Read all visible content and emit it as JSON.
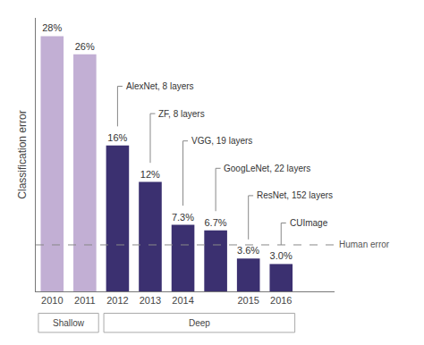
{
  "chart_data": {
    "type": "bar",
    "categories": [
      "2010",
      "2011",
      "2012",
      "2013",
      "2014",
      null,
      "2015",
      "2016"
    ],
    "values": [
      28,
      26,
      16,
      12,
      7.3,
      6.7,
      3.6,
      3.0
    ],
    "value_labels": [
      "28%",
      "26%",
      "16%",
      "12%",
      "7.3%",
      "6.7%",
      "3.6%",
      "3.0%"
    ],
    "data_labels": true,
    "colors": [
      "#c2afd4",
      "#c2afd4",
      "#3b3070",
      "#3b3070",
      "#3b3070",
      "#3b3070",
      "#3b3070",
      "#3b3070"
    ],
    "ylabel": "Classification error",
    "ylim": [
      0,
      30
    ],
    "tick_labels": "x",
    "grid": false,
    "reference_line": {
      "value": 5.1,
      "label": "Human error"
    },
    "annotations": [
      {
        "text": "AlexNet, 8 layers",
        "index": 2
      },
      {
        "text": "ZF, 8 layers",
        "index": 3
      },
      {
        "text": "VGG, 19 layers",
        "index": 4
      },
      {
        "text": "GoogLeNet, 22 layers",
        "index": 5
      },
      {
        "text": "ResNet, 152 layers",
        "index": 6
      },
      {
        "text": "CUImage",
        "index": 7
      }
    ],
    "groups": [
      {
        "label": "Shallow",
        "count": 2
      },
      {
        "label": "Deep",
        "count": 6
      }
    ]
  }
}
